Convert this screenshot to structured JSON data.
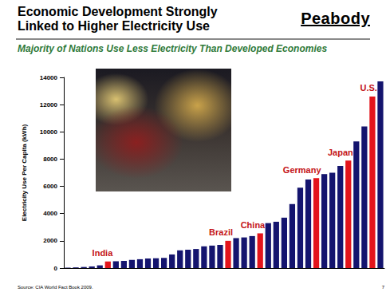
{
  "chart_data": {
    "type": "bar",
    "title": "Economic Development Strongly\nLinked to Higher Electricity Use",
    "logo": "Peabody",
    "subtitle": "Majority of Nations Use Less Electricity Than Developed Economies",
    "y_label": "Electricity Use Per Capita (kWh)",
    "source": "Source: CIA World Fact Book 2009.",
    "page": 7,
    "categories": [
      null,
      null,
      null,
      null,
      null,
      "India",
      null,
      null,
      null,
      null,
      null,
      null,
      null,
      null,
      null,
      null,
      null,
      null,
      null,
      null,
      "Brazil",
      null,
      null,
      null,
      "China",
      null,
      null,
      null,
      null,
      null,
      null,
      "Germany",
      null,
      null,
      null,
      "Japan",
      null,
      null,
      "U.S.",
      null
    ],
    "values": [
      30,
      50,
      80,
      120,
      200,
      480,
      500,
      520,
      600,
      650,
      700,
      720,
      750,
      1000,
      1300,
      1350,
      1400,
      1600,
      1650,
      1700,
      2000,
      2200,
      2250,
      2350,
      2550,
      3300,
      3400,
      3700,
      4700,
      5900,
      6500,
      6600,
      6900,
      7000,
      7500,
      7900,
      9300,
      10400,
      12600,
      13700
    ],
    "colors": [
      "#14146e",
      "#14146e",
      "#14146e",
      "#14146e",
      "#14146e",
      "#e3141b",
      "#14146e",
      "#14146e",
      "#14146e",
      "#14146e",
      "#14146e",
      "#14146e",
      "#14146e",
      "#14146e",
      "#14146e",
      "#14146e",
      "#14146e",
      "#14146e",
      "#14146e",
      "#14146e",
      "#e3141b",
      "#14146e",
      "#14146e",
      "#14146e",
      "#e3141b",
      "#14146e",
      "#14146e",
      "#14146e",
      "#14146e",
      "#14146e",
      "#14146e",
      "#e3141b",
      "#14146e",
      "#14146e",
      "#14146e",
      "#e3141b",
      "#14146e",
      "#14146e",
      "#e3141b",
      "#14146e"
    ],
    "ylim": [
      0,
      14000
    ],
    "yticks": [
      0,
      2000,
      4000,
      6000,
      8000,
      10000,
      12000,
      14000
    ],
    "grid": false,
    "tick_labels": "y"
  }
}
